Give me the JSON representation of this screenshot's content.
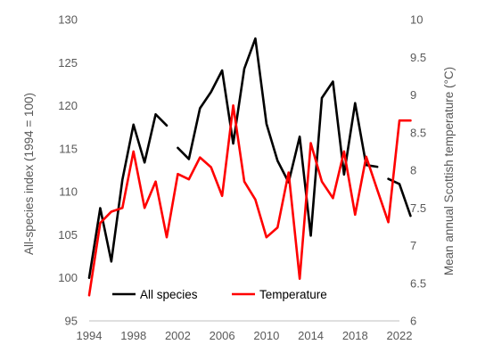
{
  "chart_data": {
    "type": "line",
    "title": "",
    "xlabel": "",
    "ylabel": "All-species index (1994 = 100)",
    "y2label": "Mean annual Scottish temperature (°C)",
    "xlim": [
      1994,
      2022
    ],
    "ylim": [
      95,
      130
    ],
    "y2lim": [
      6,
      10
    ],
    "x_ticks": [
      1994,
      1998,
      2002,
      2006,
      2010,
      2014,
      2018,
      2022
    ],
    "y_ticks": [
      95,
      100,
      105,
      110,
      115,
      120,
      125,
      130
    ],
    "y2_ticks": [
      "6",
      "6.5",
      "7",
      "7.5",
      "8",
      "8.5",
      "9",
      "9.5",
      "10"
    ],
    "grid": false,
    "legend_position": "bottom-left inside",
    "series": [
      {
        "name": "All species",
        "axis": "left",
        "color": "#000000",
        "segments": [
          {
            "x": [
              1994,
              1995,
              1996,
              1997,
              1998,
              1999,
              2000,
              2001
            ],
            "y": [
              100,
              108.1,
              101.9,
              111.4,
              117.8,
              113.4,
              119.0,
              117.7
            ]
          },
          {
            "x": [
              2002,
              2003,
              2004,
              2005,
              2006,
              2007,
              2008,
              2009,
              2010,
              2011,
              2012,
              2013,
              2014,
              2015,
              2016,
              2017,
              2018,
              2019,
              2020
            ],
            "y": [
              115.1,
              113.8,
              119.7,
              121.6,
              124.1,
              115.6,
              124.3,
              127.8,
              117.9,
              113.6,
              111.1,
              116.4,
              104.9,
              120.9,
              122.8,
              112.0,
              120.3,
              113.1,
              112.9
            ]
          },
          {
            "x": [
              2021,
              2022,
              2023
            ],
            "y": [
              111.5,
              110.9,
              107.2
            ]
          }
        ]
      },
      {
        "name": "Temperature",
        "axis": "right",
        "color": "#ff0000",
        "segments": [
          {
            "x": [
              1994,
              1995,
              1996,
              1997,
              1998,
              1999,
              2000,
              2001,
              2002,
              2003,
              2004,
              2005,
              2006,
              2007,
              2008,
              2009,
              2010,
              2011,
              2012,
              2013,
              2014,
              2015,
              2016,
              2017,
              2018,
              2019,
              2020,
              2021,
              2022,
              2023
            ],
            "y": [
              6.34,
              7.3,
              7.45,
              7.5,
              8.25,
              7.5,
              7.85,
              7.11,
              7.95,
              7.88,
              8.17,
              8.04,
              7.66,
              8.86,
              7.85,
              7.61,
              7.11,
              7.24,
              7.97,
              6.56,
              8.36,
              7.85,
              7.63,
              8.25,
              7.41,
              8.18,
              7.74,
              7.31,
              8.66,
              8.66
            ]
          }
        ]
      }
    ]
  }
}
